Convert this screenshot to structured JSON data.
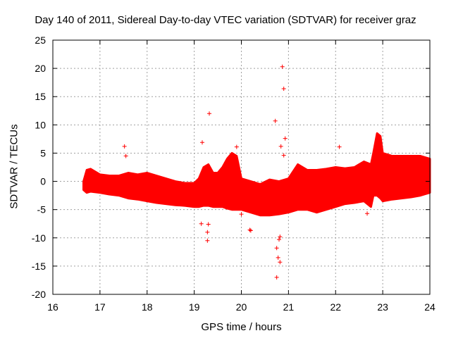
{
  "chart_data": {
    "type": "scatter",
    "title": "Day 140 of 2011, Sidereal Day-to-day VTEC variation (SDTVAR) for receiver graz",
    "xlabel": "GPS time / hours",
    "ylabel": "SDTVAR / TECUs",
    "xlim": [
      16,
      24
    ],
    "ylim": [
      -20,
      25
    ],
    "xticks": [
      16,
      17,
      18,
      19,
      20,
      21,
      22,
      23,
      24
    ],
    "yticks": [
      -20,
      -15,
      -10,
      -5,
      0,
      5,
      10,
      15,
      20,
      25
    ],
    "grid": true,
    "marker": "+",
    "color": "#ff0000",
    "band": {
      "x": [
        16.65,
        16.72,
        16.8,
        17.0,
        17.2,
        17.4,
        17.6,
        17.8,
        18.0,
        18.2,
        18.4,
        18.6,
        18.8,
        19.0,
        19.1,
        19.2,
        19.3,
        19.4,
        19.5,
        19.6,
        19.7,
        19.8,
        19.9,
        20.0,
        20.2,
        20.4,
        20.6,
        20.8,
        21.0,
        21.2,
        21.4,
        21.6,
        21.8,
        22.0,
        22.2,
        22.4,
        22.6,
        22.75,
        22.8,
        22.88,
        22.95,
        23.0,
        23.2,
        23.4,
        23.6,
        23.8,
        24.0
      ],
      "upper": [
        0.0,
        2.0,
        2.2,
        1.2,
        1.0,
        1.0,
        1.5,
        1.2,
        1.5,
        1.0,
        0.5,
        0.0,
        -0.3,
        -0.3,
        0.5,
        2.5,
        3.0,
        1.5,
        1.5,
        2.5,
        4.0,
        5.0,
        4.5,
        0.5,
        0.0,
        -0.5,
        0.3,
        0.0,
        0.5,
        3.0,
        2.0,
        2.0,
        2.2,
        2.5,
        2.3,
        2.5,
        3.5,
        3.0,
        5.0,
        8.5,
        8.0,
        5.0,
        4.5,
        4.5,
        4.5,
        4.5,
        4.0
      ],
      "lower": [
        -1.5,
        -2.0,
        -1.8,
        -2.0,
        -2.3,
        -2.5,
        -3.0,
        -3.2,
        -3.5,
        -3.8,
        -4.0,
        -4.2,
        -4.3,
        -4.5,
        -4.5,
        -4.3,
        -4.3,
        -4.5,
        -4.5,
        -4.5,
        -4.8,
        -5.0,
        -5.0,
        -5.0,
        -5.5,
        -6.0,
        -6.0,
        -5.8,
        -5.5,
        -5.0,
        -5.0,
        -5.5,
        -5.0,
        -4.5,
        -4.0,
        -3.8,
        -3.5,
        -4.5,
        -2.5,
        -2.5,
        -3.0,
        -3.5,
        -3.2,
        -3.0,
        -2.8,
        -2.5,
        -2.0
      ]
    },
    "outliers": [
      [
        17.52,
        6.2
      ],
      [
        17.55,
        4.5
      ],
      [
        19.17,
        6.9
      ],
      [
        19.32,
        12.0
      ],
      [
        19.9,
        6.1
      ],
      [
        20.72,
        10.7
      ],
      [
        20.87,
        20.3
      ],
      [
        20.9,
        16.4
      ],
      [
        20.84,
        6.2
      ],
      [
        20.93,
        7.6
      ],
      [
        20.9,
        4.6
      ],
      [
        22.08,
        6.1
      ],
      [
        22.67,
        -5.7
      ],
      [
        20.0,
        -5.8
      ],
      [
        20.18,
        -8.6
      ],
      [
        20.2,
        -8.7
      ],
      [
        19.15,
        -7.5
      ],
      [
        19.28,
        -9.0
      ],
      [
        19.28,
        -10.5
      ],
      [
        19.3,
        -7.6
      ],
      [
        20.82,
        -9.8
      ],
      [
        20.8,
        -10.3
      ],
      [
        20.75,
        -11.8
      ],
      [
        20.78,
        -13.5
      ],
      [
        20.82,
        -14.3
      ],
      [
        20.75,
        -17.0
      ]
    ]
  }
}
